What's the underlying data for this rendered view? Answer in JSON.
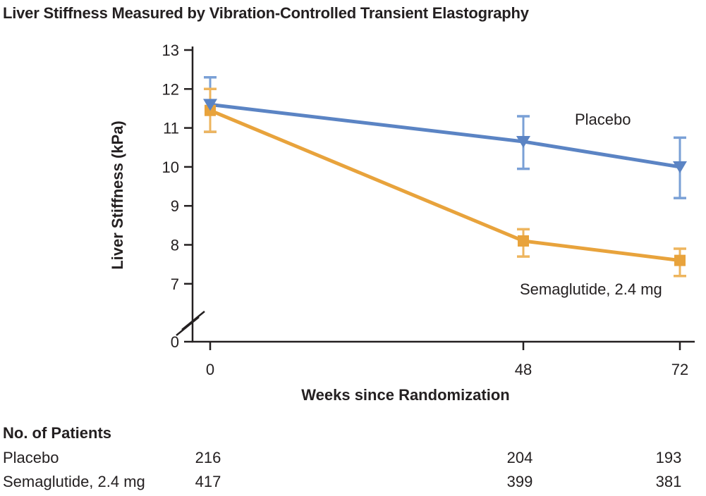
{
  "chart_data": {
    "type": "line",
    "title": "Liver Stiffness Measured by Vibration-Controlled Transient Elastography",
    "xlabel": "Weeks since Randomization",
    "ylabel": "Liver Stiffness (kPa)",
    "x": [
      0,
      48,
      72
    ],
    "x_tick_labels": [
      "0",
      "48",
      "72"
    ],
    "y_ticks": [
      13,
      12,
      11,
      10,
      9,
      8,
      7
    ],
    "y_tick_labels": [
      "13",
      "12",
      "11",
      "10",
      "9",
      "8",
      "7"
    ],
    "y_origin_label": "0",
    "y_axis_break": true,
    "ylim_display": [
      7,
      13
    ],
    "grid": false,
    "legend_position": "inline-annotations",
    "axis_color": "#242021",
    "series": [
      {
        "name": "Placebo",
        "marker": "triangle-down",
        "color": "#5b84c4",
        "errorbar_color": "#7aa0d6",
        "values": [
          11.6,
          10.65,
          10.0
        ],
        "ci_low": [
          10.9,
          9.95,
          9.2
        ],
        "ci_high": [
          12.3,
          11.3,
          10.75
        ]
      },
      {
        "name": "Semaglutide, 2.4 mg",
        "marker": "square",
        "color": "#e8a33c",
        "errorbar_color": "#eeb55e",
        "values": [
          11.45,
          8.1,
          7.6
        ],
        "ci_low": [
          10.9,
          7.7,
          7.2
        ],
        "ci_high": [
          12.0,
          8.4,
          7.9
        ]
      }
    ]
  },
  "patients_table": {
    "heading": "No. of Patients",
    "rows": [
      {
        "label": "Placebo",
        "values": [
          "216",
          "204",
          "193"
        ]
      },
      {
        "label": "Semaglutide, 2.4 mg",
        "values": [
          "417",
          "399",
          "381"
        ]
      }
    ]
  }
}
